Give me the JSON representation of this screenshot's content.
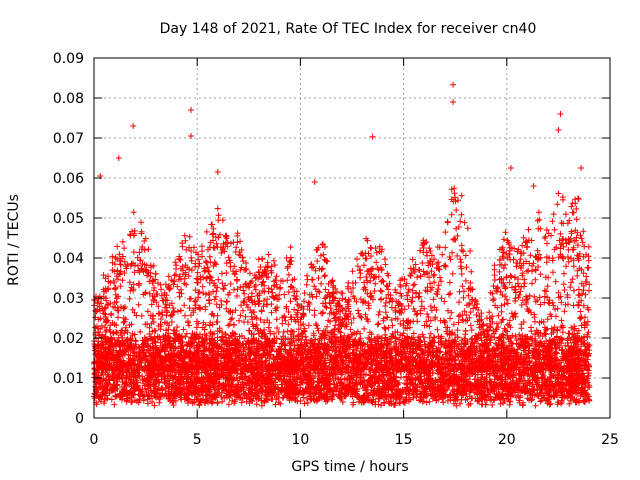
{
  "chart_data": {
    "type": "scatter",
    "title": "Day 148 of 2021, Rate Of TEC Index for receiver cn40",
    "xlabel": "GPS time / hours",
    "ylabel": "ROTI / TECUs",
    "xlim": [
      0,
      25
    ],
    "ylim": [
      0,
      0.09
    ],
    "xticks": [
      0,
      5,
      10,
      15,
      20,
      25
    ],
    "yticks": [
      0,
      0.01,
      0.02,
      0.03,
      0.04,
      0.05,
      0.06,
      0.07,
      0.08,
      0.09
    ],
    "x_tick_labels": [
      "0",
      "5",
      "10",
      "15",
      "20",
      "25"
    ],
    "y_tick_labels": [
      "0",
      "0.01",
      "0.02",
      "0.03",
      "0.04",
      "0.05",
      "0.06",
      "0.07",
      "0.08",
      "0.09"
    ],
    "grid": true,
    "marker": "+",
    "series_color": "#ff0000",
    "data_x_range": [
      0,
      24
    ],
    "baseline_band": [
      0.005,
      0.02
    ],
    "notable_points": [
      {
        "x": 1.9,
        "y": 0.073
      },
      {
        "x": 4.7,
        "y": 0.077
      },
      {
        "x": 4.7,
        "y": 0.0705
      },
      {
        "x": 1.2,
        "y": 0.065
      },
      {
        "x": 6.0,
        "y": 0.0615
      },
      {
        "x": 13.5,
        "y": 0.0703
      },
      {
        "x": 17.4,
        "y": 0.0833
      },
      {
        "x": 17.4,
        "y": 0.079
      },
      {
        "x": 22.6,
        "y": 0.076
      },
      {
        "x": 22.5,
        "y": 0.072
      },
      {
        "x": 20.2,
        "y": 0.0625
      },
      {
        "x": 23.6,
        "y": 0.0625
      },
      {
        "x": 0.3,
        "y": 0.0605
      },
      {
        "x": 10.7,
        "y": 0.059
      },
      {
        "x": 21.3,
        "y": 0.058
      }
    ],
    "activity_profile": [
      {
        "x": 0.0,
        "y": 0.03
      },
      {
        "x": 0.5,
        "y": 0.035
      },
      {
        "x": 1.0,
        "y": 0.04
      },
      {
        "x": 1.5,
        "y": 0.046
      },
      {
        "x": 2.0,
        "y": 0.05
      },
      {
        "x": 2.5,
        "y": 0.045
      },
      {
        "x": 3.0,
        "y": 0.035
      },
      {
        "x": 3.5,
        "y": 0.032
      },
      {
        "x": 4.0,
        "y": 0.04
      },
      {
        "x": 4.5,
        "y": 0.045
      },
      {
        "x": 5.0,
        "y": 0.04
      },
      {
        "x": 5.5,
        "y": 0.045
      },
      {
        "x": 6.0,
        "y": 0.05
      },
      {
        "x": 6.5,
        "y": 0.045
      },
      {
        "x": 7.0,
        "y": 0.045
      },
      {
        "x": 7.5,
        "y": 0.035
      },
      {
        "x": 8.0,
        "y": 0.038
      },
      {
        "x": 8.5,
        "y": 0.04
      },
      {
        "x": 9.0,
        "y": 0.035
      },
      {
        "x": 9.5,
        "y": 0.042
      },
      {
        "x": 10.0,
        "y": 0.025
      },
      {
        "x": 10.5,
        "y": 0.04
      },
      {
        "x": 11.0,
        "y": 0.045
      },
      {
        "x": 11.5,
        "y": 0.035
      },
      {
        "x": 12.0,
        "y": 0.03
      },
      {
        "x": 12.5,
        "y": 0.035
      },
      {
        "x": 13.0,
        "y": 0.042
      },
      {
        "x": 13.5,
        "y": 0.045
      },
      {
        "x": 14.0,
        "y": 0.04
      },
      {
        "x": 14.5,
        "y": 0.03
      },
      {
        "x": 15.0,
        "y": 0.035
      },
      {
        "x": 15.5,
        "y": 0.04
      },
      {
        "x": 16.0,
        "y": 0.045
      },
      {
        "x": 16.5,
        "y": 0.04
      },
      {
        "x": 17.0,
        "y": 0.045
      },
      {
        "x": 17.5,
        "y": 0.06
      },
      {
        "x": 18.0,
        "y": 0.05
      },
      {
        "x": 18.5,
        "y": 0.03
      },
      {
        "x": 19.0,
        "y": 0.025
      },
      {
        "x": 19.5,
        "y": 0.04
      },
      {
        "x": 20.0,
        "y": 0.045
      },
      {
        "x": 20.5,
        "y": 0.042
      },
      {
        "x": 21.0,
        "y": 0.045
      },
      {
        "x": 21.5,
        "y": 0.05
      },
      {
        "x": 22.0,
        "y": 0.045
      },
      {
        "x": 22.5,
        "y": 0.06
      },
      {
        "x": 23.0,
        "y": 0.05
      },
      {
        "x": 23.5,
        "y": 0.055
      },
      {
        "x": 24.0,
        "y": 0.04
      }
    ]
  }
}
